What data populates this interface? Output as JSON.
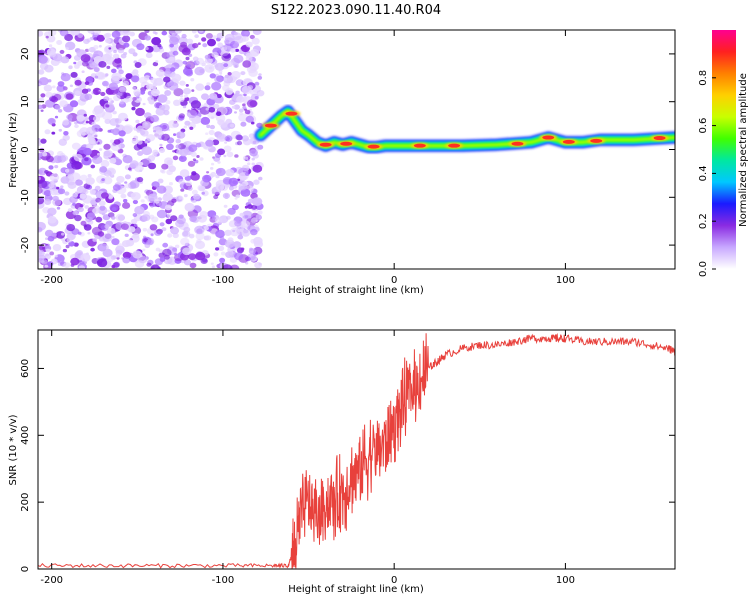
{
  "title": "S122.2023.090.11.40.R04",
  "chart_data": [
    {
      "type": "heatmap",
      "xlabel": "Height of straight line (km)",
      "ylabel": "Frequency (Hz)",
      "xlim": [
        -208,
        164
      ],
      "ylim": [
        -25,
        25
      ],
      "xticks": [
        -200,
        -100,
        0,
        100
      ],
      "yticks": [
        -20,
        -10,
        0,
        10,
        20
      ],
      "colorbar": {
        "label": "Normalized spectral amplitude",
        "range": [
          0,
          1
        ],
        "ticks": [
          "0.0",
          "0.2",
          "0.4",
          "0.6",
          "0.8"
        ],
        "colormap": [
          "#ffffff",
          "#c8a8ff",
          "#8a2be2",
          "#1a1aff",
          "#00c8ff",
          "#00e8a0",
          "#40ff00",
          "#c8ff00",
          "#ffd000",
          "#ff8000",
          "#ff2020",
          "#ff0090"
        ]
      },
      "noise_region_x": [
        -208,
        -78
      ],
      "ridge": {
        "x": [
          -78,
          -72,
          -66,
          -62,
          -58,
          -54,
          -50,
          -45,
          -40,
          -35,
          -30,
          -25,
          -20,
          -15,
          -10,
          -5,
          0,
          20,
          40,
          60,
          80,
          90,
          95,
          100,
          110,
          120,
          140,
          164
        ],
        "y": [
          3,
          5,
          7,
          8,
          6,
          4,
          3,
          1.5,
          0.8,
          1.5,
          1,
          1.5,
          1,
          0.5,
          0.5,
          0.8,
          0.8,
          0.8,
          0.8,
          1,
          1.5,
          2.5,
          2,
          1.5,
          1.5,
          2,
          2,
          2.5
        ]
      }
    },
    {
      "type": "line",
      "xlabel": "Height of straight line (km)",
      "ylabel": "SNR (10 * v/v)",
      "xlim": [
        -208,
        164
      ],
      "ylim": [
        0,
        715
      ],
      "xticks": [
        -200,
        -100,
        0,
        100
      ],
      "yticks": [
        0,
        200,
        400,
        600
      ],
      "color": "#e8413c",
      "series": [
        {
          "x": [
            -208,
            -180,
            -150,
            -120,
            -90,
            -70,
            -62,
            -58,
            -55,
            -50,
            -45,
            -40,
            -35,
            -30,
            -25,
            -20,
            -15,
            -10,
            -5,
            0,
            5,
            10,
            15,
            20,
            25,
            30,
            40,
            50,
            60,
            70,
            80,
            90,
            95,
            100,
            110,
            120,
            130,
            140,
            150,
            160,
            164
          ],
          "y": [
            10,
            10,
            10,
            10,
            10,
            10,
            10,
            60,
            150,
            200,
            150,
            200,
            200,
            230,
            270,
            300,
            340,
            360,
            380,
            430,
            490,
            530,
            570,
            600,
            620,
            640,
            660,
            670,
            670,
            680,
            690,
            690,
            690,
            690,
            680,
            680,
            680,
            680,
            670,
            660,
            650
          ]
        }
      ]
    }
  ]
}
